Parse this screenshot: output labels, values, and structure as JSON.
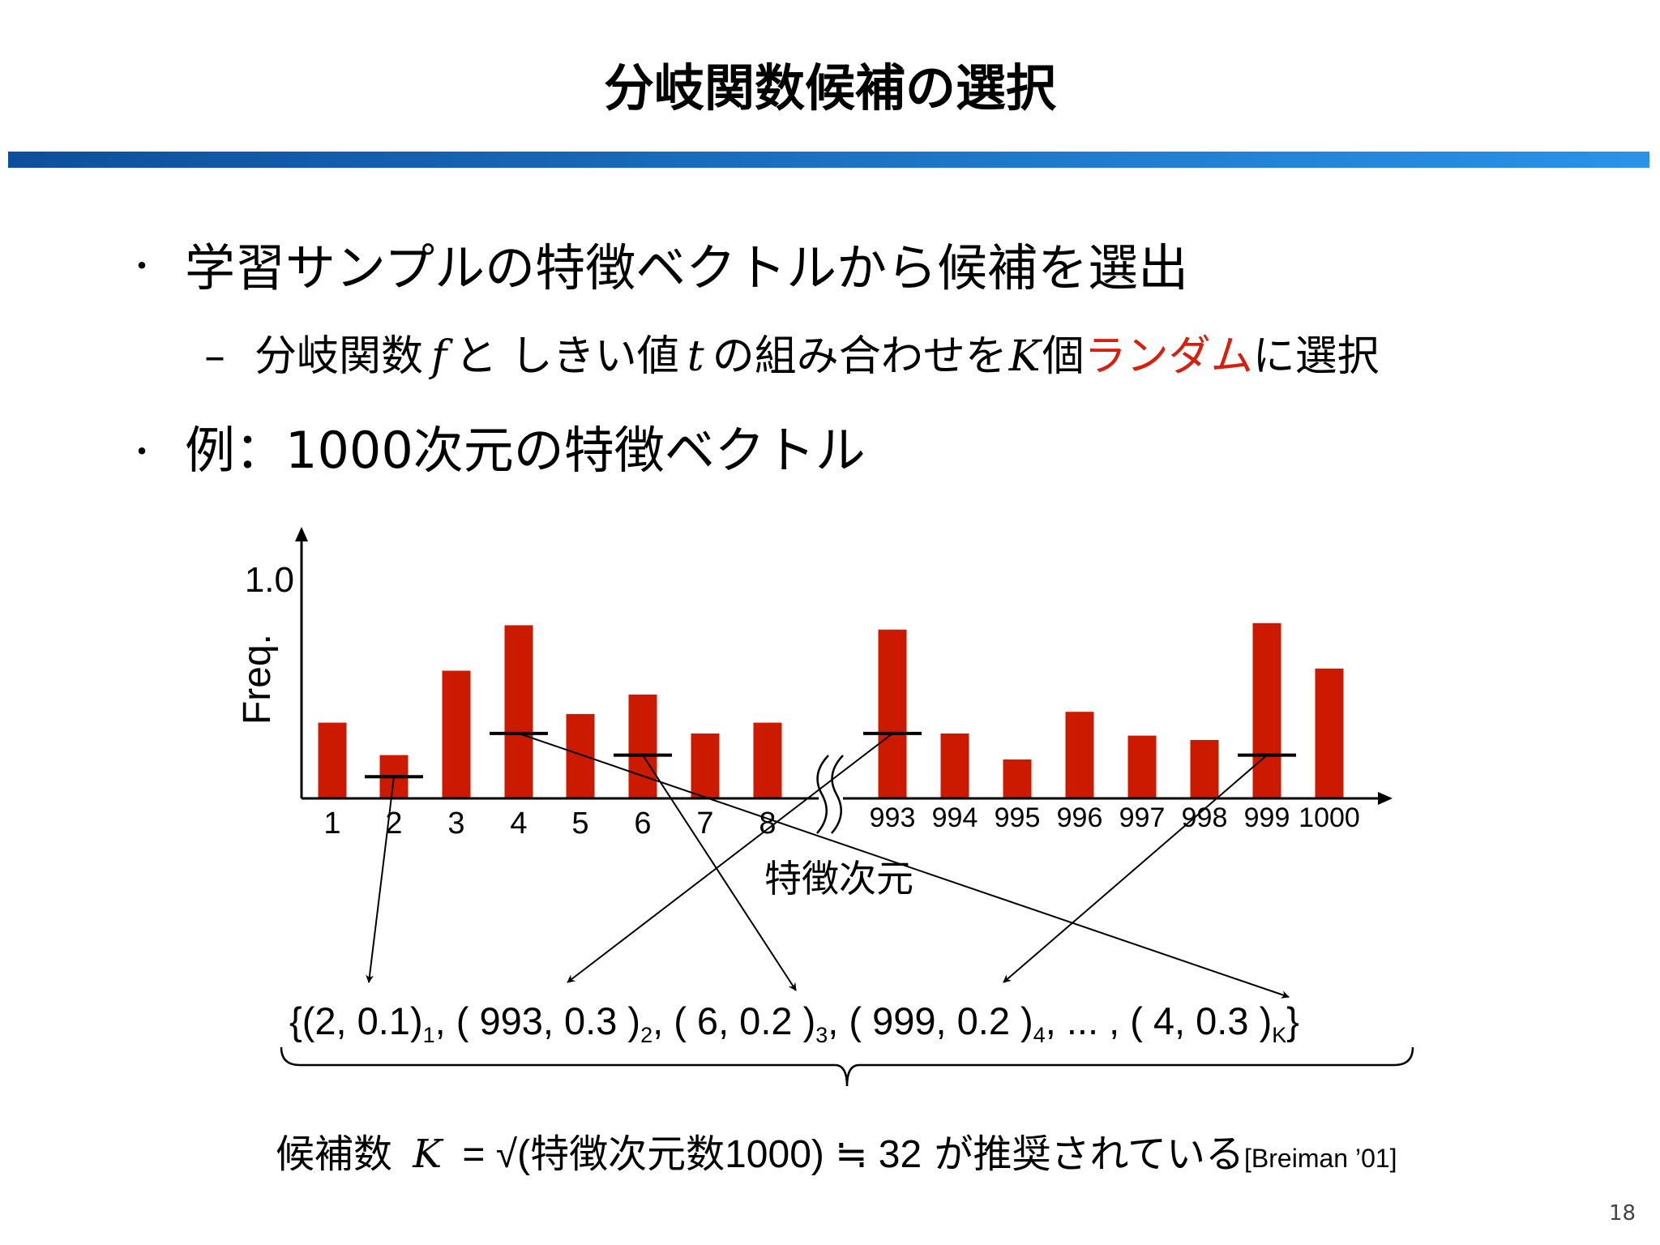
{
  "title": "分岐関数候補の選択",
  "bullets": [
    {
      "marker": "・",
      "text": "学習サンプルの特徴ベクトルから候補を選出"
    },
    {
      "marker": "・",
      "text": "例：1000次元の特徴ベクトル"
    }
  ],
  "sub_bullet": {
    "dash": "–",
    "parts": [
      "分岐関数",
      "f",
      "と しきい値",
      "t",
      "の組み合わせを",
      "K",
      "個",
      "ランダム",
      "に選択"
    ]
  },
  "formula": {
    "open": "{",
    "items": [
      {
        "text": "(2, 0.1)",
        "sub": "1"
      },
      {
        "text": "( 993, 0.3 )",
        "sub": "2"
      },
      {
        "text": "( 6, 0.2 )",
        "sub": "3"
      },
      {
        "text": "( 999, 0.2 )",
        "sub": "4"
      },
      {
        "text": "... ,"
      },
      {
        "text": "( 4, 0.3 )",
        "sub": "K"
      }
    ],
    "close": "}"
  },
  "note": {
    "prefix": "候補数",
    "K": "K",
    "eq": "= √(特徴次元数1000) ≒ 32",
    "suffix": "が推奨されている",
    "citation": "[Breiman ’01]"
  },
  "page_number": "18",
  "colors": {
    "bar": "#cc1a00",
    "rule_start": "#0d4f9c",
    "rule_end": "#2a93e8",
    "highlight": "#d91e0b"
  },
  "chart_data": {
    "type": "bar",
    "categories": [
      "1",
      "2",
      "3",
      "4",
      "5",
      "6",
      "7",
      "8",
      "993",
      "994",
      "995",
      "996",
      "997",
      "998",
      "999",
      "1000"
    ],
    "values": [
      0.35,
      0.2,
      0.59,
      0.8,
      0.39,
      0.48,
      0.3,
      0.35,
      0.78,
      0.3,
      0.18,
      0.4,
      0.29,
      0.27,
      0.81,
      0.6
    ],
    "ytick_label": "1.0",
    "ylabel": "Freq.",
    "xlabel": "特徴次元",
    "ylim": [
      0,
      1.0
    ],
    "axis_break_after": "8",
    "selected_thresholds": [
      {
        "category": "2",
        "value": 0.1
      },
      {
        "category": "993",
        "value": 0.3
      },
      {
        "category": "6",
        "value": 0.2
      },
      {
        "category": "999",
        "value": 0.2
      },
      {
        "category": "4",
        "value": 0.3
      }
    ]
  }
}
